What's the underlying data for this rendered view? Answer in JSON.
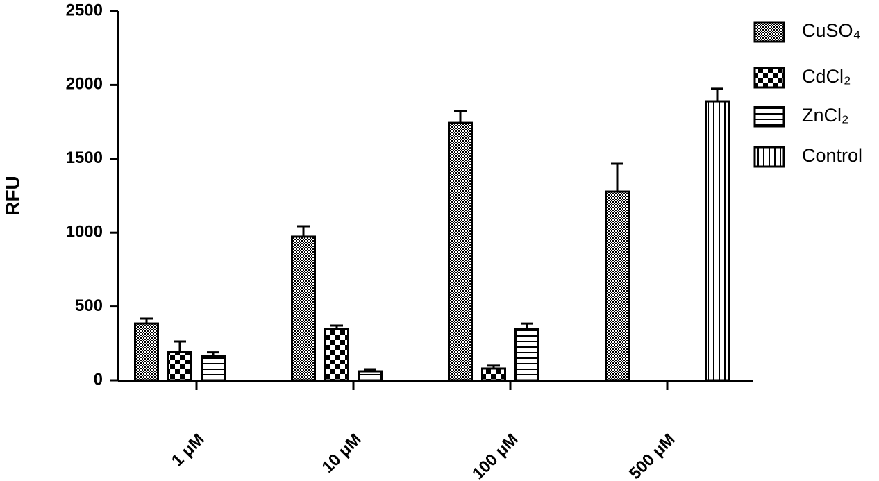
{
  "chart_data": {
    "type": "bar",
    "y_label": "RFU",
    "categories": [
      "1 μM",
      "10 μM",
      "100 μM",
      "500 μM"
    ],
    "series": [
      {
        "name": "CuSO₄",
        "color": "#000000",
        "pattern": "dots",
        "values": [
          385,
          973,
          1743,
          1278
        ],
        "errors": [
          33,
          70,
          80,
          188
        ]
      },
      {
        "name": "CdCl₂",
        "color": "#000000",
        "pattern": "checker",
        "values": [
          193,
          348,
          80,
          null
        ],
        "errors": [
          70,
          23,
          19,
          null
        ]
      },
      {
        "name": "ZnCl₂",
        "color": "#000000",
        "pattern": "hlines",
        "values": [
          165,
          61,
          348,
          null
        ],
        "errors": [
          25,
          14,
          37,
          null
        ]
      },
      {
        "name": "Control",
        "color": "#000000",
        "pattern": "vlines",
        "values": [
          null,
          null,
          null,
          1889
        ],
        "errors": [
          null,
          null,
          null,
          85
        ]
      }
    ],
    "ylim": [
      0,
      2500
    ],
    "yticks": [
      0,
      500,
      1000,
      1500,
      2000,
      2500
    ]
  }
}
